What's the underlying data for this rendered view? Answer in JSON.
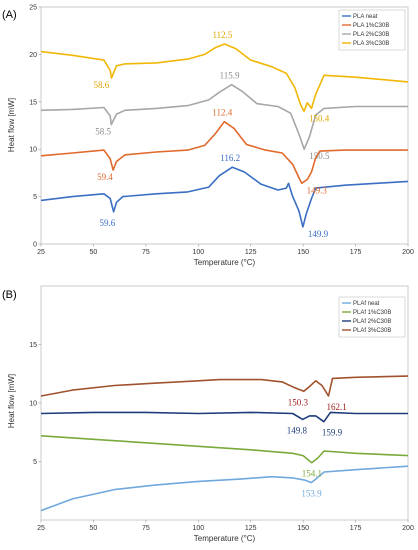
{
  "chart_data": [
    {
      "type": "line",
      "panel_label": "(A)",
      "xlabel": "Temperature (°C)",
      "ylabel": "Heat flow [mW]",
      "xlim": [
        25,
        200
      ],
      "ylim": [
        0,
        25
      ],
      "xticks": [
        "25",
        "50",
        "75",
        "100",
        "125",
        "150",
        "175",
        "200"
      ],
      "yticks": [
        "0",
        "5",
        "10",
        "15",
        "20",
        "25"
      ],
      "grid": false,
      "legend_position": "top-right",
      "series": [
        {
          "name": "PLA neat",
          "color": "#3A6FC4",
          "points": [
            [
              25,
              4.6
            ],
            [
              40,
              5.0
            ],
            [
              55,
              5.3
            ],
            [
              58,
              4.8
            ],
            [
              59.6,
              3.4
            ],
            [
              61,
              4.4
            ],
            [
              64,
              5.0
            ],
            [
              80,
              5.3
            ],
            [
              95,
              5.5
            ],
            [
              105,
              6.0
            ],
            [
              110,
              7.2
            ],
            [
              116.2,
              8.1
            ],
            [
              122,
              7.6
            ],
            [
              130,
              6.3
            ],
            [
              138,
              5.7
            ],
            [
              142,
              5.9
            ],
            [
              143,
              6.4
            ],
            [
              145,
              5.0
            ],
            [
              148,
              3.5
            ],
            [
              149.9,
              1.8
            ],
            [
              151.5,
              3.2
            ],
            [
              154,
              4.8
            ],
            [
              156,
              5.9
            ],
            [
              170,
              6.2
            ],
            [
              185,
              6.4
            ],
            [
              200,
              6.6
            ]
          ]
        },
        {
          "name": "PLA 1%C30B",
          "color": "#E06A2C",
          "points": [
            [
              25,
              9.3
            ],
            [
              40,
              9.6
            ],
            [
              55,
              9.9
            ],
            [
              58,
              9.0
            ],
            [
              59.4,
              7.8
            ],
            [
              61,
              8.7
            ],
            [
              65,
              9.4
            ],
            [
              80,
              9.7
            ],
            [
              95,
              9.9
            ],
            [
              103,
              10.4
            ],
            [
              108,
              11.6
            ],
            [
              112.4,
              12.9
            ],
            [
              117,
              12.2
            ],
            [
              123,
              10.5
            ],
            [
              132,
              9.9
            ],
            [
              140,
              9.6
            ],
            [
              145,
              8.4
            ],
            [
              148,
              7.0
            ],
            [
              149.3,
              6.4
            ],
            [
              152,
              6.8
            ],
            [
              154,
              7.6
            ],
            [
              156,
              9.1
            ],
            [
              158,
              9.8
            ],
            [
              170,
              9.9
            ],
            [
              185,
              9.9
            ],
            [
              200,
              9.9
            ]
          ]
        },
        {
          "name": "PLA 2%C30B",
          "color": "#A7A7A7",
          "points": [
            [
              25,
              14.1
            ],
            [
              40,
              14.2
            ],
            [
              55,
              14.4
            ],
            [
              58,
              13.5
            ],
            [
              58.5,
              12.6
            ],
            [
              61,
              13.7
            ],
            [
              65,
              14.1
            ],
            [
              80,
              14.3
            ],
            [
              95,
              14.6
            ],
            [
              105,
              15.2
            ],
            [
              110,
              16.0
            ],
            [
              115.9,
              16.8
            ],
            [
              121,
              16.1
            ],
            [
              128,
              14.8
            ],
            [
              138,
              14.5
            ],
            [
              144,
              13.8
            ],
            [
              148,
              11.6
            ],
            [
              150.5,
              10.0
            ],
            [
              153,
              11.3
            ],
            [
              156,
              13.6
            ],
            [
              160,
              14.3
            ],
            [
              175,
              14.5
            ],
            [
              200,
              14.5
            ]
          ]
        },
        {
          "name": "PLA 3%C30B",
          "color": "#F2B705",
          "points": [
            [
              25,
              20.3
            ],
            [
              40,
              19.9
            ],
            [
              55,
              19.4
            ],
            [
              58,
              18.3
            ],
            [
              58.6,
              17.5
            ],
            [
              61,
              18.8
            ],
            [
              65,
              19.0
            ],
            [
              80,
              19.1
            ],
            [
              95,
              19.5
            ],
            [
              103,
              20.0
            ],
            [
              108,
              20.7
            ],
            [
              112.5,
              21.1
            ],
            [
              118,
              20.6
            ],
            [
              125,
              19.4
            ],
            [
              135,
              18.7
            ],
            [
              142,
              18.0
            ],
            [
              146,
              16.5
            ],
            [
              149,
              14.6
            ],
            [
              150.4,
              14.0
            ],
            [
              152,
              14.9
            ],
            [
              154,
              14.3
            ],
            [
              156,
              15.8
            ],
            [
              160,
              17.8
            ],
            [
              175,
              17.6
            ],
            [
              200,
              17.1
            ]
          ]
        }
      ],
      "annotations": [
        {
          "text": "59.6",
          "x": 59.6,
          "y": 3.4,
          "color": "#3A6FC4"
        },
        {
          "text": "116.2",
          "x": 116.2,
          "y": 8.1,
          "color": "#3A6FC4"
        },
        {
          "text": "149.9",
          "x": 149.9,
          "y": 1.8,
          "color": "#3A6FC4"
        },
        {
          "text": "59.4",
          "x": 59.4,
          "y": 7.8,
          "color": "#E06A2C"
        },
        {
          "text": "112.4",
          "x": 112.4,
          "y": 12.9,
          "color": "#E06A2C"
        },
        {
          "text": "149.3",
          "x": 149.3,
          "y": 6.4,
          "color": "#E06A2C"
        },
        {
          "text": "58.5",
          "x": 58.5,
          "y": 12.6,
          "color": "#8E8E8E"
        },
        {
          "text": "115.9",
          "x": 115.9,
          "y": 16.8,
          "color": "#8E8E8E"
        },
        {
          "text": "150.5",
          "x": 150.5,
          "y": 10.0,
          "color": "#8E8E8E"
        },
        {
          "text": "58.6",
          "x": 58.6,
          "y": 17.5,
          "color": "#E2A700"
        },
        {
          "text": "112.5",
          "x": 112.5,
          "y": 21.1,
          "color": "#E2A700"
        },
        {
          "text": "150.4",
          "x": 150.4,
          "y": 14.0,
          "color": "#E2A700"
        }
      ]
    },
    {
      "type": "line",
      "panel_label": "(B)",
      "xlabel": "Temperature (°C)",
      "ylabel": "Heat flow [mW]",
      "xlim": [
        25,
        200
      ],
      "ylim": [
        0,
        20
      ],
      "xticks": [
        "25",
        "50",
        "75",
        "100",
        "125",
        "150",
        "175",
        "200"
      ],
      "yticks": [
        "5",
        "10",
        "15"
      ],
      "grid": false,
      "legend_position": "top-right",
      "series": [
        {
          "name": "PLAf neat",
          "color": "#6FA8DC",
          "points": [
            [
              25,
              0.8
            ],
            [
              40,
              1.8
            ],
            [
              60,
              2.6
            ],
            [
              80,
              3.0
            ],
            [
              100,
              3.3
            ],
            [
              120,
              3.5
            ],
            [
              135,
              3.7
            ],
            [
              145,
              3.6
            ],
            [
              151,
              3.4
            ],
            [
              153.9,
              3.2
            ],
            [
              156,
              3.5
            ],
            [
              160,
              4.1
            ],
            [
              175,
              4.3
            ],
            [
              200,
              4.6
            ]
          ]
        },
        {
          "name": "PLAf 1%C30B",
          "color": "#7BAA3C",
          "points": [
            [
              25,
              7.2
            ],
            [
              50,
              6.9
            ],
            [
              75,
              6.6
            ],
            [
              100,
              6.3
            ],
            [
              125,
              6.0
            ],
            [
              145,
              5.7
            ],
            [
              150,
              5.5
            ],
            [
              154.1,
              4.9
            ],
            [
              157,
              5.3
            ],
            [
              160,
              5.9
            ],
            [
              175,
              5.7
            ],
            [
              200,
              5.5
            ]
          ]
        },
        {
          "name": "PLAf 2%C30B",
          "color": "#1F3C7A",
          "points": [
            [
              25,
              9.1
            ],
            [
              50,
              9.2
            ],
            [
              75,
              9.2
            ],
            [
              100,
              9.1
            ],
            [
              125,
              9.2
            ],
            [
              145,
              9.1
            ],
            [
              149.8,
              8.6
            ],
            [
              153,
              8.9
            ],
            [
              156,
              8.9
            ],
            [
              159.9,
              8.4
            ],
            [
              163,
              9.2
            ],
            [
              175,
              9.1
            ],
            [
              200,
              9.1
            ]
          ]
        },
        {
          "name": "PLAf 3%C30B",
          "color": "#A0522D",
          "points": [
            [
              25,
              10.6
            ],
            [
              40,
              11.1
            ],
            [
              60,
              11.5
            ],
            [
              80,
              11.7
            ],
            [
              100,
              11.9
            ],
            [
              110,
              12.0
            ],
            [
              120,
              12.0
            ],
            [
              130,
              12.0
            ],
            [
              140,
              11.8
            ],
            [
              146,
              11.3
            ],
            [
              150.3,
              11.0
            ],
            [
              153,
              11.4
            ],
            [
              156,
              11.9
            ],
            [
              159,
              11.5
            ],
            [
              162.1,
              10.6
            ],
            [
              164,
              12.1
            ],
            [
              175,
              12.2
            ],
            [
              200,
              12.3
            ]
          ]
        }
      ],
      "annotations": [
        {
          "text": "150.3",
          "x": 150.3,
          "y": 11.0,
          "color": "#A11D1D"
        },
        {
          "text": "162.1",
          "x": 162.1,
          "y": 10.6,
          "color": "#A11D1D"
        },
        {
          "text": "149.8",
          "x": 149.8,
          "y": 8.6,
          "color": "#1F3C7A"
        },
        {
          "text": "159.9",
          "x": 159.9,
          "y": 8.4,
          "color": "#1F3C7A"
        },
        {
          "text": "154.1",
          "x": 154.1,
          "y": 4.9,
          "color": "#7BAA3C"
        },
        {
          "text": "153.9",
          "x": 153.9,
          "y": 3.2,
          "color": "#6FA8DC"
        }
      ]
    }
  ]
}
